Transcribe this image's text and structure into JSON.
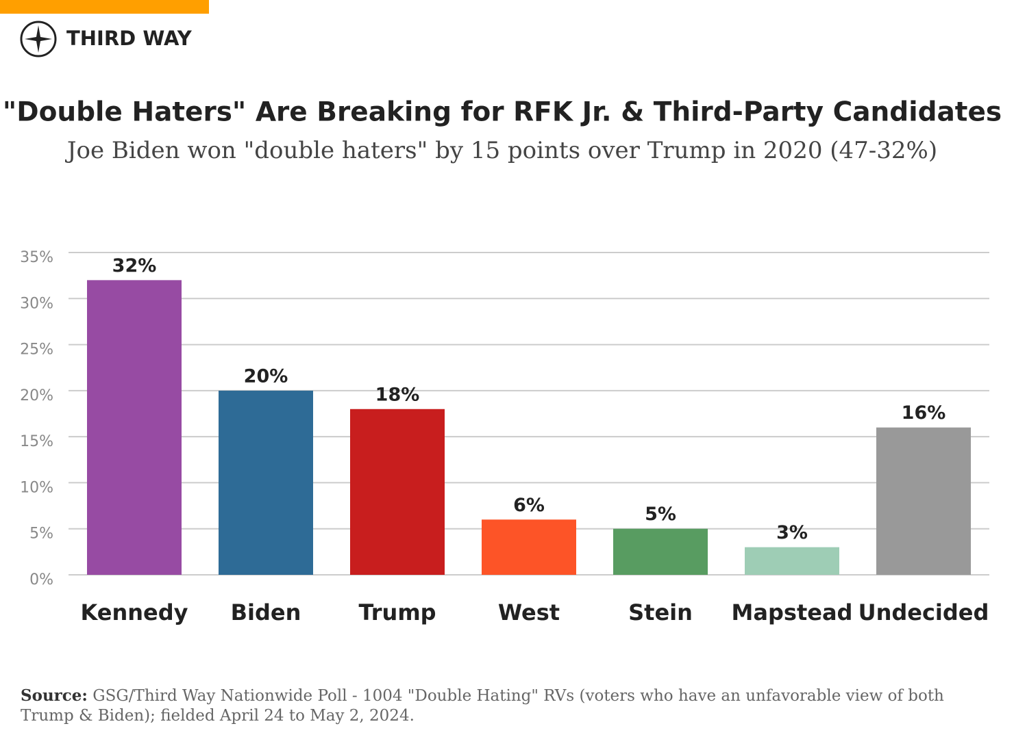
{
  "brand": "THIRD WAY",
  "chart_data": {
    "type": "bar",
    "title": "\"Double Haters\" Are Breaking for RFK Jr. & Third-Party Candidates",
    "subtitle": "Joe Biden won \"double haters\" by 15 points over Trump in 2020 (47-32%)",
    "categories": [
      "Kennedy",
      "Biden",
      "Trump",
      "West",
      "Stein",
      "Mapstead",
      "Undecided"
    ],
    "values": [
      32,
      20,
      18,
      6,
      5,
      3,
      16
    ],
    "value_labels": [
      "32%",
      "20%",
      "18%",
      "6%",
      "5%",
      "3%",
      "16%"
    ],
    "colors": [
      "#974ba3",
      "#2e6b96",
      "#c81e1e",
      "#fd5427",
      "#589c61",
      "#9ecdb5",
      "#999999"
    ],
    "ylim": [
      0,
      35
    ],
    "yticks": [
      {
        "value": 0,
        "label": "0%"
      },
      {
        "value": 5,
        "label": "5%"
      },
      {
        "value": 10,
        "label": "10%"
      },
      {
        "value": 15,
        "label": "15%"
      },
      {
        "value": 20,
        "label": "20%"
      },
      {
        "value": 25,
        "label": "25%"
      },
      {
        "value": 30,
        "label": "30%"
      },
      {
        "value": 35,
        "label": "35%"
      }
    ],
    "grid": true,
    "source_label": "Source:",
    "source_text": "GSG/Third Way Nationwide Poll - 1004 \"Double Hating\" RVs (voters who have an unfavorable view of both Trump & Biden); fielded April 24 to May 2, 2024."
  }
}
